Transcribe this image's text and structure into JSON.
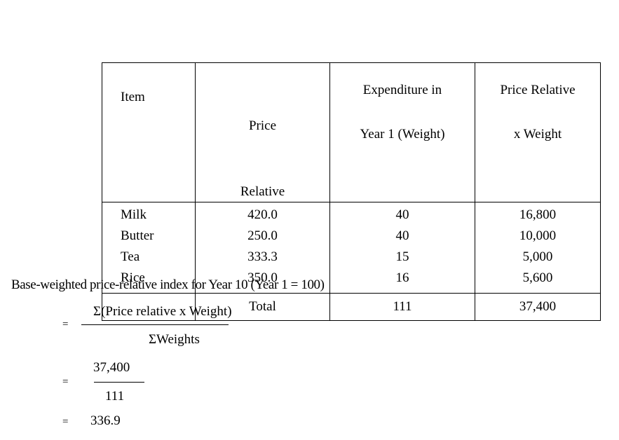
{
  "table": {
    "headers": {
      "item": "Item",
      "price_relative": [
        "Price",
        "Relative"
      ],
      "expenditure": [
        "Expenditure in",
        "Year 1 (Weight)"
      ],
      "pr_weight": [
        "Price Relative",
        "x Weight"
      ]
    },
    "rows": [
      {
        "item": "Milk",
        "price_relative": "420.0",
        "weight": "40",
        "product": "16,800"
      },
      {
        "item": "Butter",
        "price_relative": "250.0",
        "weight": "40",
        "product": "10,000"
      },
      {
        "item": "Tea",
        "price_relative": "333.3",
        "weight": "15",
        "product": "5,000"
      },
      {
        "item": "Rice",
        "price_relative": "350.0",
        "weight": "16",
        "product": "5,600"
      }
    ],
    "total": {
      "label": "Total",
      "weight": "111",
      "product": "37,400"
    }
  },
  "calculation": {
    "heading": "Base-weighted price-relative index for Year 10 (Year 1 = 100)",
    "equals_sign": "=",
    "formula_numerator": "Σ(Price relative x Weight)",
    "formula_denominator": "ΣWeights",
    "value_numerator": "37,400",
    "value_denominator": "111",
    "result": "336.9"
  }
}
